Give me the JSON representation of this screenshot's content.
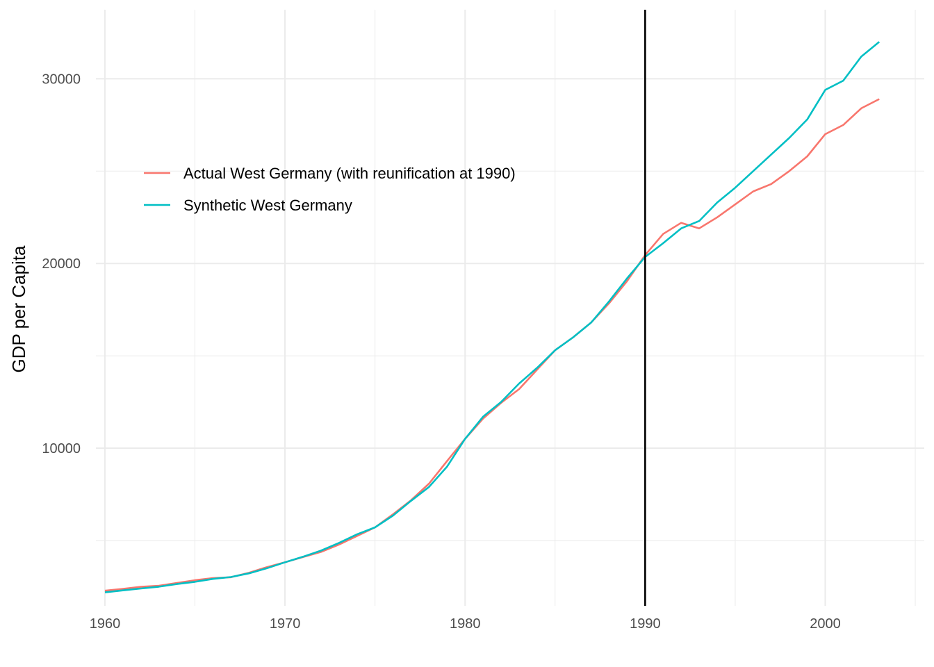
{
  "chart_data": {
    "type": "line",
    "title": "",
    "xlabel": "",
    "ylabel": "GDP per Capita",
    "xlim": [
      1959.5,
      2005.5
    ],
    "ylim": [
      1460,
      33740
    ],
    "x_ticks": [
      1960,
      1970,
      1980,
      1990,
      2000
    ],
    "y_ticks": [
      10000,
      20000,
      30000
    ],
    "x_minor_ticks": [
      1965,
      1975,
      1985,
      1995,
      2005
    ],
    "y_minor_ticks": [
      5000,
      15000,
      25000
    ],
    "grid": true,
    "legend_position": "top-left",
    "treatment_year": 1990,
    "x": [
      1960,
      1961,
      1962,
      1963,
      1964,
      1965,
      1966,
      1967,
      1968,
      1969,
      1970,
      1971,
      1972,
      1973,
      1974,
      1975,
      1976,
      1977,
      1978,
      1979,
      1980,
      1981,
      1982,
      1983,
      1984,
      1985,
      1986,
      1987,
      1988,
      1989,
      1990,
      1991,
      1992,
      1993,
      1994,
      1995,
      1996,
      1997,
      1998,
      1999,
      2000,
      2001,
      2002,
      2003
    ],
    "series": [
      {
        "name": "Actual West Germany (with reunification at 1990)",
        "color": "#F8766D",
        "values": [
          2280,
          2380,
          2490,
          2550,
          2700,
          2850,
          2960,
          3010,
          3250,
          3560,
          3820,
          4100,
          4380,
          4780,
          5240,
          5710,
          6420,
          7180,
          8080,
          9300,
          10500,
          11600,
          12450,
          13200,
          14250,
          15300,
          16000,
          16800,
          17850,
          19050,
          20450,
          21600,
          22200,
          21900,
          22500,
          23200,
          23900,
          24300,
          25000,
          25800,
          27000,
          27500,
          28400,
          28900
        ]
      },
      {
        "name": "Synthetic West Germany",
        "color": "#00BFC4",
        "values": [
          2190,
          2300,
          2400,
          2500,
          2640,
          2760,
          2920,
          3020,
          3220,
          3500,
          3820,
          4120,
          4450,
          4870,
          5330,
          5710,
          6350,
          7150,
          7900,
          9000,
          10500,
          11700,
          12500,
          13500,
          14350,
          15300,
          16000,
          16800,
          17950,
          19200,
          20350,
          21100,
          21900,
          22300,
          23300,
          24100,
          25000,
          25900,
          26800,
          27800,
          29400,
          29900,
          31200,
          32000
        ]
      }
    ]
  }
}
